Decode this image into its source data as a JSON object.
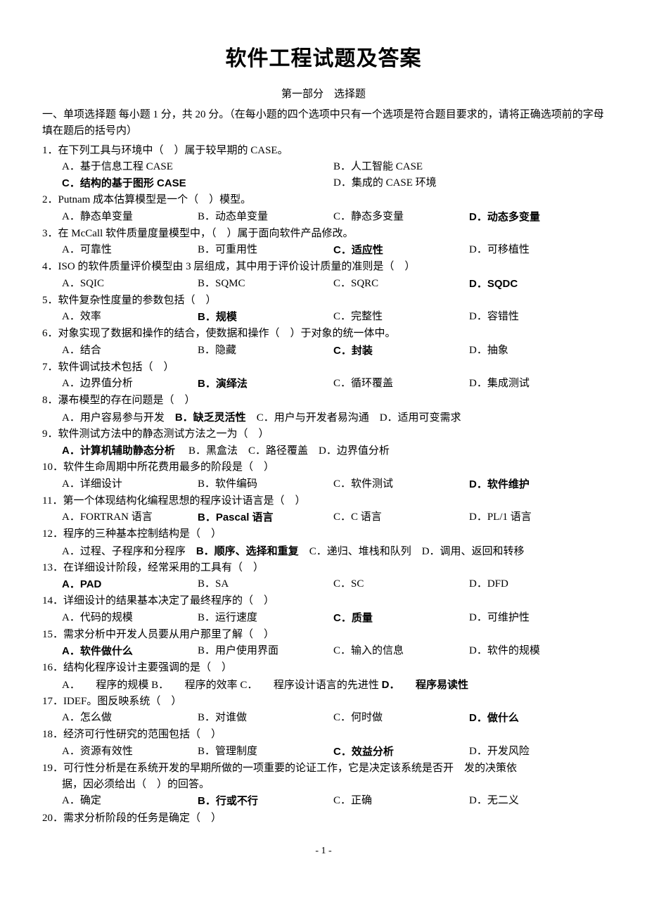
{
  "title": "软件工程试题及答案",
  "subtitle": "第一部分　选择题",
  "instructions": "一、单项选择题 每小题 1 分，共 20 分。（在每小题的四个选项中只有一个选项是符合题目要求的，请将正确选项前的字母填在题后的括号内）",
  "questions": [
    {
      "num": "1．",
      "stem": "在下列工具与环境中（　）属于较早期的 CASE。",
      "style": "cols2",
      "opts": [
        "A．基于信息工程 CASE",
        "B．人工智能 CASE",
        "C．结构的基于图形 CASE",
        "D．集成的 CASE 环境"
      ],
      "ans": 2
    },
    {
      "num": "2．",
      "stem": "Putnam 成本估算模型是一个（　）模型。",
      "style": "cols4",
      "opts": [
        "A．静态单变量",
        "B．动态单变量",
        "C．静态多变量",
        "D．动态多变量"
      ],
      "ans": 3
    },
    {
      "num": "3．",
      "stem": "在 McCall 软件质量度量模型中，（　）属于面向软件产品修改。",
      "style": "cols4",
      "opts": [
        "A．可靠性",
        "B．可重用性",
        "C．适应性",
        "D．可移植性"
      ],
      "ans": 2
    },
    {
      "num": "4．",
      "stem": "ISO 的软件质量评价模型由 3 层组成，其中用于评价设计质量的准则是（　）",
      "style": "cols4",
      "opts": [
        "A．SQIC",
        "B．SQMC",
        "C．SQRC",
        "D．SQDC"
      ],
      "ans": 3
    },
    {
      "num": "5．",
      "stem": "软件复杂性度量的参数包括（　）",
      "style": "cols4",
      "opts": [
        "A．效率",
        "B．规模",
        "C．完整性",
        "D．容错性"
      ],
      "ans": 1
    },
    {
      "num": "6．",
      "stem": "对象实现了数据和操作的结合，使数据和操作（　）于对象的统一体中。",
      "style": "cols4",
      "opts": [
        "A．结合",
        "B．隐藏",
        "C．封装",
        "D．抽象"
      ],
      "ans": 2
    },
    {
      "num": "7．",
      "stem": "软件调试技术包括（　）",
      "style": "cols4",
      "opts": [
        "A．边界值分析",
        "B．演绎法",
        "C．循环覆盖",
        "D．集成测试"
      ],
      "ans": 1
    },
    {
      "num": "8．",
      "stem": "瀑布模型的存在问题是（　）",
      "style": "cols1",
      "opts_inline": "A．用户容易参与开发　B．缺乏灵活性　C．用户与开发者易沟通　D．适用可变需求",
      "ans_idx": 1
    },
    {
      "num": "9．",
      "stem": "软件测试方法中的静态测试方法之一为（　）",
      "style": "cols1",
      "opts_inline": "A．计算机辅助静态分析　 B．黑盒法　C．路径覆盖　D．边界值分析",
      "ans_idx": 0
    },
    {
      "num": "10．",
      "stem": "软件生命周期中所花费用最多的阶段是（　）",
      "style": "cols4",
      "opts": [
        "A．详细设计",
        "B．软件编码",
        "C．软件测试",
        "D．软件维护"
      ],
      "ans": 3
    },
    {
      "num": "11．",
      "stem": "第一个体现结构化编程思想的程序设计语言是（　）",
      "style": "cols4",
      "opts": [
        "A．FORTRAN 语言",
        "B．Pascal 语言",
        "C．C 语言",
        "D．PL/1 语言"
      ],
      "ans": 1
    },
    {
      "num": "12．",
      "stem": "程序的三种基本控制结构是（　）",
      "style": "cols1",
      "opts_inline": "A．过程、子程序和分程序　B．顺序、选择和重复　C．递归、堆栈和队列　D．调用、返回和转移",
      "ans_idx": 1
    },
    {
      "num": "13．",
      "stem": "在详细设计阶段，经常采用的工具有（　）",
      "style": "cols4",
      "opts": [
        "A．PAD",
        "B．SA",
        "C．SC",
        "D．DFD"
      ],
      "ans": 0
    },
    {
      "num": "14．",
      "stem": "详细设计的结果基本决定了最终程序的（　）",
      "style": "cols4",
      "opts": [
        "A．代码的规模",
        "B．运行速度",
        "C．质量",
        "D．可维护性"
      ],
      "ans": 2
    },
    {
      "num": "15．",
      "stem": "需求分析中开发人员要从用户那里了解（　）",
      "style": "cols4",
      "opts": [
        "A．软件做什么",
        "B．用户使用界面",
        "C．输入的信息",
        "D．软件的规模"
      ],
      "ans": 0
    },
    {
      "num": "16．",
      "stem": "结构化程序设计主要强调的是（　）",
      "style": "cols1",
      "opts_inline": "A．　　程序的规模 B．　　程序的效率 C．　　程序设计语言的先进性 D．　　程序易读性",
      "ans_idx": 3
    },
    {
      "num": "17．",
      "stem": "IDEF。图反映系统（　）",
      "style": "cols4",
      "opts": [
        "A．怎么做",
        "B．对谁做",
        "C．何时做",
        "D．做什么"
      ],
      "ans": 3
    },
    {
      "num": "18．",
      "stem": "经济可行性研究的范围包括（　）",
      "style": "cols4",
      "opts": [
        "A．资源有效性",
        "B．管理制度",
        "C．效益分析",
        "D．开发风险"
      ],
      "ans": 2
    },
    {
      "num": "19．",
      "stem": "可行性分析是在系统开发的早期所做的一项重要的论证工作，它是决定该系统是否开　发的决策依",
      "cont": "据，因必须给出（　）的回答。",
      "style": "cols4",
      "opts": [
        "A．确定",
        "B．行或不行",
        "C．正确",
        "D．无二义"
      ],
      "ans": 1
    },
    {
      "num": "20．",
      "stem": "需求分析阶段的任务是确定（　）",
      "style": "none"
    }
  ],
  "pageNumber": "- 1 -"
}
